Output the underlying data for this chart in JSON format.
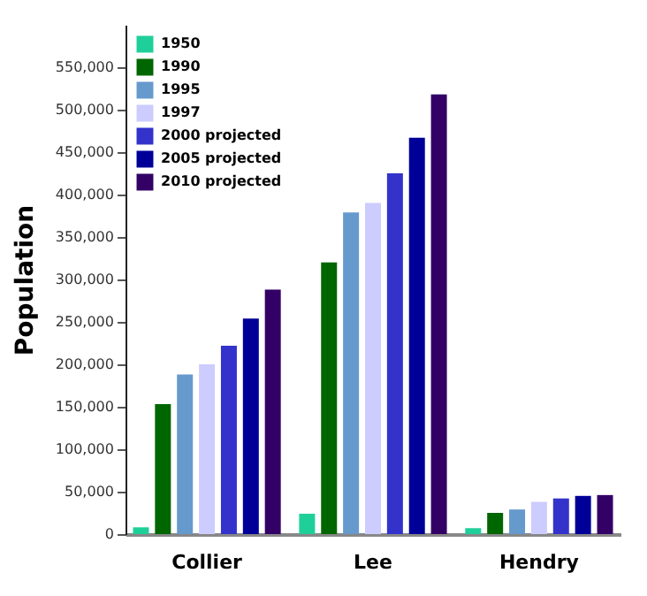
{
  "chart_data": {
    "type": "bar",
    "ylabel": "Population",
    "categories": [
      "Collier",
      "Lee",
      "Hendry"
    ],
    "series": [
      {
        "name": "1950",
        "color": "#1fcf9a",
        "values": [
          8000,
          24000,
          7000
        ]
      },
      {
        "name": "1990",
        "color": "#006600",
        "values": [
          153000,
          320000,
          25000
        ]
      },
      {
        "name": "1995",
        "color": "#6699cc",
        "values": [
          188000,
          379000,
          29000
        ]
      },
      {
        "name": "1997",
        "color": "#ccccff",
        "values": [
          200000,
          390000,
          38000
        ]
      },
      {
        "name": "2000 projected",
        "color": "#3333cc",
        "values": [
          222000,
          425000,
          42000
        ]
      },
      {
        "name": "2005 projected",
        "color": "#000099",
        "values": [
          254000,
          467000,
          45000
        ]
      },
      {
        "name": "2010 projected",
        "color": "#330066",
        "values": [
          288000,
          518000,
          46000
        ]
      }
    ],
    "ylim": [
      0,
      600000
    ],
    "yticks": [
      0,
      {
        "value": 50000,
        "label": "50,000"
      },
      {
        "value": 100000,
        "label": "100,000"
      },
      {
        "value": 150000,
        "label": "150,000"
      },
      {
        "value": 200000,
        "label": "200,000"
      },
      {
        "value": 250000,
        "label": "250,000"
      },
      {
        "value": 300000,
        "label": "300,000"
      },
      {
        "value": 350000,
        "label": "350,000"
      },
      {
        "value": 400000,
        "label": "400,000"
      },
      {
        "value": 450000,
        "label": "450,000"
      },
      {
        "value": 500000,
        "label": "500,000"
      },
      {
        "value": 550000,
        "label": "550,000"
      }
    ],
    "grid": false,
    "legend": "top left"
  }
}
